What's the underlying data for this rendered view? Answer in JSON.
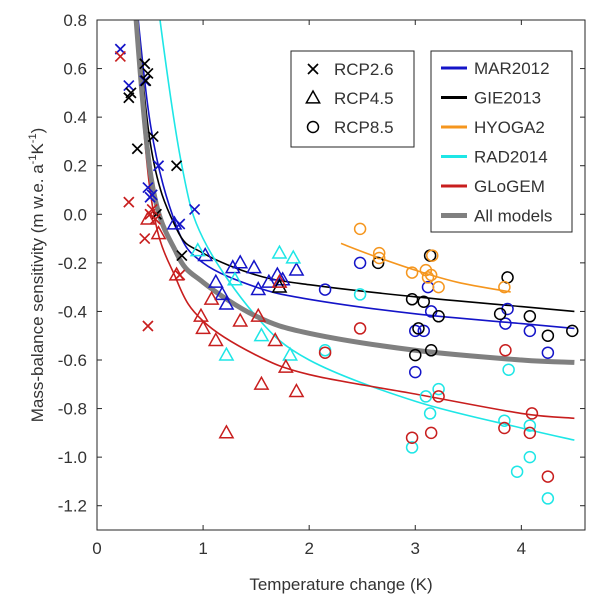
{
  "chart_data": {
    "type": "scatter",
    "xlabel": "Temperature change (K)",
    "ylabel_parts": [
      "Mass-balance sensitivity (m w.e. a",
      "-1",
      "K",
      "-1",
      ")"
    ],
    "xlim": [
      0,
      4.6
    ],
    "ylim": [
      -1.3,
      0.8
    ],
    "xticks": [
      0,
      1,
      2,
      3,
      4
    ],
    "yticks": [
      0.8,
      0.6,
      0.4,
      0.2,
      0.0,
      -0.2,
      -0.4,
      -0.6,
      -0.8,
      -1.0,
      -1.2
    ],
    "ytick_labels": [
      "0.8",
      "0.6",
      "0.4",
      "0.2",
      "0.0",
      "-0.2",
      "-0.4",
      "-0.6",
      "-0.8",
      "-1.0",
      "-1.2"
    ],
    "grid": false,
    "marker_legend": [
      {
        "marker": "x",
        "label": "RCP2.6"
      },
      {
        "marker": "triangle",
        "label": "RCP4.5"
      },
      {
        "marker": "circle",
        "label": "RCP8.5"
      }
    ],
    "model_legend": [
      {
        "name": "MAR2012",
        "color": "#1414c8"
      },
      {
        "name": "GIE2013",
        "color": "#000000"
      },
      {
        "name": "HYOGA2",
        "color": "#f5961e"
      },
      {
        "name": "RAD2014",
        "color": "#1ee6e6"
      },
      {
        "name": "GLoGEM",
        "color": "#c81e1e"
      },
      {
        "name": "All models",
        "color": "#808080"
      }
    ],
    "series": [
      {
        "name": "MAR2012",
        "color": "#1414c8",
        "fit": {
          "x_range": [
            0.3,
            4.5
          ],
          "points": [
            [
              0.3,
              1.2
            ],
            [
              0.5,
              0.38
            ],
            [
              0.75,
              -0.05
            ],
            [
              1.0,
              -0.2
            ],
            [
              1.5,
              -0.3
            ],
            [
              2.0,
              -0.35
            ],
            [
              3.0,
              -0.41
            ],
            [
              4.0,
              -0.45
            ],
            [
              4.5,
              -0.47
            ]
          ]
        },
        "rcp26": [
          [
            0.22,
            0.68
          ],
          [
            0.3,
            0.53
          ],
          [
            0.45,
            0.55
          ],
          [
            0.48,
            0.11
          ],
          [
            0.5,
            0.07
          ],
          [
            0.52,
            0.08
          ],
          [
            0.58,
            0.2
          ],
          [
            0.78,
            -0.04
          ],
          [
            0.92,
            0.02
          ]
        ],
        "rcp45": [
          [
            0.73,
            -0.04
          ],
          [
            1.02,
            -0.17
          ],
          [
            1.12,
            -0.28
          ],
          [
            1.18,
            -0.33
          ],
          [
            1.22,
            -0.37
          ],
          [
            1.28,
            -0.22
          ],
          [
            1.35,
            -0.2
          ],
          [
            1.48,
            -0.22
          ],
          [
            1.52,
            -0.31
          ],
          [
            1.62,
            -0.28
          ],
          [
            1.7,
            -0.25
          ],
          [
            1.75,
            -0.27
          ],
          [
            1.88,
            -0.23
          ]
        ],
        "rcp85": [
          [
            2.15,
            -0.31
          ],
          [
            2.48,
            -0.2
          ],
          [
            3.0,
            -0.48
          ],
          [
            3.0,
            -0.65
          ],
          [
            3.08,
            -0.48
          ],
          [
            3.12,
            -0.3
          ],
          [
            3.15,
            -0.4
          ],
          [
            3.85,
            -0.45
          ],
          [
            3.87,
            -0.39
          ],
          [
            4.08,
            -0.48
          ],
          [
            4.25,
            -0.57
          ]
        ]
      },
      {
        "name": "GIE2013",
        "color": "#000000",
        "fit": {
          "x_range": [
            0.3,
            4.5
          ],
          "points": [
            [
              0.3,
              1.2
            ],
            [
              0.5,
              0.3
            ],
            [
              0.75,
              -0.06
            ],
            [
              1.0,
              -0.16
            ],
            [
              1.5,
              -0.25
            ],
            [
              2.0,
              -0.29
            ],
            [
              3.0,
              -0.34
            ],
            [
              4.0,
              -0.38
            ],
            [
              4.5,
              -0.4
            ]
          ]
        },
        "rcp26": [
          [
            0.3,
            0.48
          ],
          [
            0.32,
            0.5
          ],
          [
            0.38,
            0.27
          ],
          [
            0.45,
            0.62
          ],
          [
            0.46,
            0.55
          ],
          [
            0.48,
            0.58
          ],
          [
            0.53,
            0.32
          ],
          [
            0.56,
            0.0
          ],
          [
            0.75,
            0.2
          ],
          [
            0.8,
            -0.17
          ]
        ],
        "rcp45": [
          [
            1.72,
            -0.3
          ]
        ],
        "rcp85": [
          [
            2.65,
            -0.2
          ],
          [
            2.97,
            -0.35
          ],
          [
            3.0,
            -0.58
          ],
          [
            3.03,
            -0.47
          ],
          [
            3.08,
            -0.36
          ],
          [
            3.14,
            -0.17
          ],
          [
            3.15,
            -0.56
          ],
          [
            3.22,
            -0.42
          ],
          [
            3.8,
            -0.41
          ],
          [
            3.87,
            -0.26
          ],
          [
            4.08,
            -0.42
          ],
          [
            4.25,
            -0.5
          ],
          [
            4.48,
            -0.48
          ]
        ]
      },
      {
        "name": "HYOGA2",
        "color": "#f5961e",
        "fit": {
          "x_range": [
            2.3,
            3.9
          ],
          "points": [
            [
              2.3,
              -0.12
            ],
            [
              2.6,
              -0.17
            ],
            [
              3.0,
              -0.23
            ],
            [
              3.4,
              -0.28
            ],
            [
              3.9,
              -0.32
            ]
          ]
        },
        "rcp26": [],
        "rcp45": [],
        "rcp85": [
          [
            2.48,
            -0.06
          ],
          [
            2.66,
            -0.16
          ],
          [
            2.66,
            -0.18
          ],
          [
            2.97,
            -0.24
          ],
          [
            3.1,
            -0.23
          ],
          [
            3.12,
            -0.26
          ],
          [
            3.15,
            -0.25
          ],
          [
            3.16,
            -0.17
          ],
          [
            3.22,
            -0.3
          ],
          [
            3.84,
            -0.3
          ]
        ]
      },
      {
        "name": "RAD2014",
        "color": "#1ee6e6",
        "fit": {
          "x_range": [
            0.5,
            4.5
          ],
          "points": [
            [
              0.5,
              1.2
            ],
            [
              0.6,
              0.78
            ],
            [
              0.8,
              0.2
            ],
            [
              1.0,
              -0.1
            ],
            [
              1.5,
              -0.42
            ],
            [
              2.0,
              -0.6
            ],
            [
              3.0,
              -0.77
            ],
            [
              4.0,
              -0.88
            ],
            [
              4.5,
              -0.93
            ]
          ]
        },
        "rcp26": [],
        "rcp45": [
          [
            0.95,
            -0.15
          ],
          [
            1.22,
            -0.58
          ],
          [
            1.3,
            -0.27
          ],
          [
            1.55,
            -0.5
          ],
          [
            1.72,
            -0.16
          ],
          [
            1.82,
            -0.58
          ],
          [
            1.85,
            -0.18
          ]
        ],
        "rcp85": [
          [
            2.15,
            -0.56
          ],
          [
            2.48,
            -0.33
          ],
          [
            2.97,
            -0.96
          ],
          [
            3.1,
            -0.75
          ],
          [
            3.14,
            -0.82
          ],
          [
            3.22,
            -0.72
          ],
          [
            3.84,
            -0.85
          ],
          [
            3.88,
            -0.64
          ],
          [
            3.96,
            -1.06
          ],
          [
            4.08,
            -1.0
          ],
          [
            4.08,
            -0.87
          ],
          [
            4.25,
            -1.17
          ]
        ]
      },
      {
        "name": "GLoGEM",
        "color": "#c81e1e",
        "fit": {
          "x_range": [
            0.3,
            4.5
          ],
          "points": [
            [
              0.3,
              1.2
            ],
            [
              0.5,
              0.1
            ],
            [
              0.75,
              -0.27
            ],
            [
              1.0,
              -0.44
            ],
            [
              1.5,
              -0.58
            ],
            [
              2.0,
              -0.66
            ],
            [
              3.0,
              -0.74
            ],
            [
              4.0,
              -0.82
            ],
            [
              4.5,
              -0.84
            ]
          ]
        },
        "rcp26": [
          [
            0.22,
            0.65
          ],
          [
            0.3,
            0.05
          ],
          [
            0.45,
            -0.1
          ],
          [
            0.48,
            -0.46
          ],
          [
            0.5,
            0.0
          ],
          [
            0.52,
            0.02
          ],
          [
            0.55,
            -0.02
          ],
          [
            0.78,
            -0.25
          ]
        ],
        "rcp45": [
          [
            0.48,
            -0.02
          ],
          [
            0.58,
            -0.08
          ],
          [
            0.75,
            -0.25
          ],
          [
            0.98,
            -0.42
          ],
          [
            1.0,
            -0.47
          ],
          [
            1.08,
            -0.35
          ],
          [
            1.12,
            -0.52
          ],
          [
            1.22,
            -0.9
          ],
          [
            1.35,
            -0.44
          ],
          [
            1.52,
            -0.42
          ],
          [
            1.55,
            -0.7
          ],
          [
            1.68,
            -0.52
          ],
          [
            1.72,
            -0.28
          ],
          [
            1.78,
            -0.63
          ],
          [
            1.88,
            -0.73
          ]
        ],
        "rcp85": [
          [
            2.15,
            -0.57
          ],
          [
            2.48,
            -0.47
          ],
          [
            2.97,
            -0.92
          ],
          [
            3.15,
            -0.9
          ],
          [
            3.22,
            -0.75
          ],
          [
            3.85,
            -0.56
          ],
          [
            3.84,
            -0.88
          ],
          [
            4.08,
            -0.9
          ],
          [
            4.1,
            -0.82
          ],
          [
            4.25,
            -1.08
          ]
        ]
      }
    ],
    "all_models_fit": {
      "name": "All models",
      "color": "#808080",
      "points": [
        [
          0.3,
          1.2
        ],
        [
          0.5,
          0.18
        ],
        [
          0.75,
          -0.16
        ],
        [
          1.0,
          -0.28
        ],
        [
          1.5,
          -0.42
        ],
        [
          2.0,
          -0.49
        ],
        [
          3.0,
          -0.56
        ],
        [
          4.0,
          -0.6
        ],
        [
          4.5,
          -0.61
        ]
      ]
    }
  }
}
